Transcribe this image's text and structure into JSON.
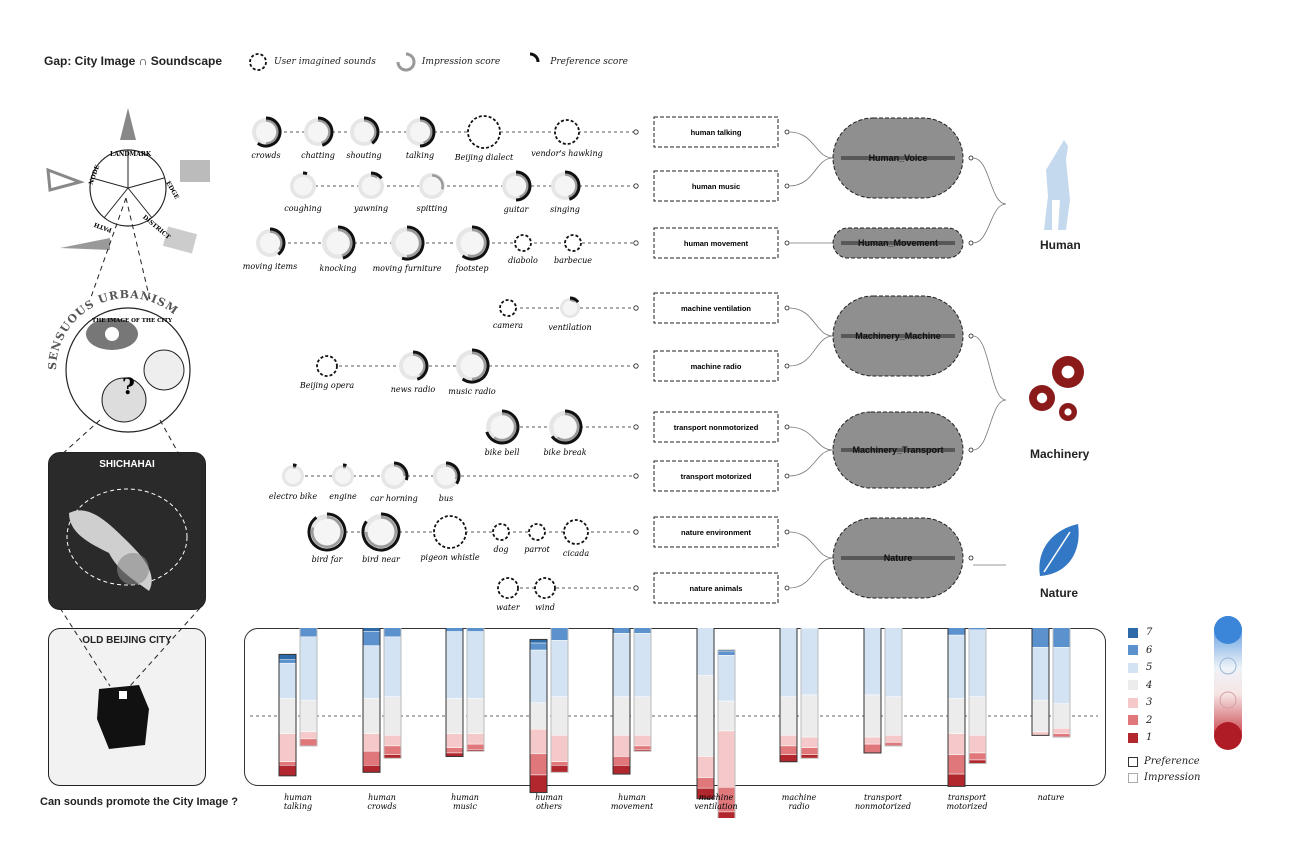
{
  "title": "Gap: City Image ∩ Soundscape",
  "question": "Can sounds promote the City Image ?",
  "legend": {
    "imagined": "User imagined sounds",
    "impression": "Impression score",
    "preference": "Preference score"
  },
  "rows": [
    {
      "sounds": [
        {
          "name": "crowds",
          "type": "score",
          "pref": 0.6,
          "imp": 0.5
        },
        {
          "name": "chatting",
          "type": "score",
          "pref": 0.45,
          "imp": 0.45
        },
        {
          "name": "shouting",
          "type": "score",
          "pref": 0.4,
          "imp": 0.4
        },
        {
          "name": "talking",
          "type": "score",
          "pref": 0.5,
          "imp": 0.45
        },
        {
          "name": "Beijing dialect",
          "type": "imagined"
        },
        {
          "name": "vendor's hawking",
          "type": "imagined"
        }
      ],
      "category": "human talking"
    },
    {
      "sounds": [
        {
          "name": "coughing",
          "type": "score",
          "pref": 0.05,
          "imp": 0
        },
        {
          "name": "yawning",
          "type": "score",
          "pref": 0.15,
          "imp": 0.1
        },
        {
          "name": "spitting",
          "type": "score",
          "pref": 0,
          "imp": 0.3
        },
        {
          "name": "guitar",
          "type": "score",
          "pref": 0.5,
          "imp": 0.45
        },
        {
          "name": "singing",
          "type": "score",
          "pref": 0.45,
          "imp": 0.45
        }
      ],
      "category": "human music"
    },
    {
      "sounds": [
        {
          "name": "moving items",
          "type": "score",
          "pref": 0.4,
          "imp": 0.35
        },
        {
          "name": "knocking",
          "type": "score",
          "pref": 0.45,
          "imp": 0.45
        },
        {
          "name": "moving furniture",
          "type": "score",
          "pref": 0.55,
          "imp": 0.5
        },
        {
          "name": "footstep",
          "type": "score",
          "pref": 0.6,
          "imp": 0.55
        },
        {
          "name": "diabolo",
          "type": "imagined"
        },
        {
          "name": "barbecue",
          "type": "imagined"
        }
      ],
      "category": "human movement"
    },
    {
      "sounds": [
        {
          "name": "camera",
          "type": "imagined"
        },
        {
          "name": "ventilation",
          "type": "score",
          "pref": 0.15,
          "imp": 0.1
        }
      ],
      "category": "machine ventilation"
    },
    {
      "sounds": [
        {
          "name": "Beijing opera",
          "type": "imagined"
        },
        {
          "name": "news radio",
          "type": "score",
          "pref": 0.45,
          "imp": 0.4
        },
        {
          "name": "music radio",
          "type": "score",
          "pref": 0.6,
          "imp": 0.5
        }
      ],
      "category": "machine radio"
    },
    {
      "sounds": [
        {
          "name": "bike bell",
          "type": "score",
          "pref": 0.7,
          "imp": 0.6
        },
        {
          "name": "bike break",
          "type": "score",
          "pref": 0.65,
          "imp": 0.6
        }
      ],
      "category": "transport nonmotorized"
    },
    {
      "sounds": [
        {
          "name": "electro bike",
          "type": "score",
          "pref": 0.05,
          "imp": 0.05
        },
        {
          "name": "engine",
          "type": "score",
          "pref": 0.05,
          "imp": 0.05
        },
        {
          "name": "car horning",
          "type": "score",
          "pref": 0.3,
          "imp": 0.25
        },
        {
          "name": "bus",
          "type": "score",
          "pref": 0.35,
          "imp": 0.3
        },
        {
          "name": "",
          "type": "none"
        }
      ],
      "category": "transport motorized"
    },
    {
      "sounds": [
        {
          "name": "bird far",
          "type": "score",
          "pref": 0.9,
          "imp": 0.8
        },
        {
          "name": "bird near",
          "type": "score",
          "pref": 0.85,
          "imp": 0.75
        },
        {
          "name": "pigeon whistle",
          "type": "imagined"
        },
        {
          "name": "dog",
          "type": "imagined"
        },
        {
          "name": "parrot",
          "type": "imagined"
        },
        {
          "name": "cicada",
          "type": "imagined"
        }
      ],
      "category": "nature environment"
    },
    {
      "sounds": [
        {
          "name": "water",
          "type": "imagined"
        },
        {
          "name": "wind",
          "type": "imagined"
        }
      ],
      "category": "nature animals"
    }
  ],
  "clusters": [
    "Human_Voice",
    "Human_Movement",
    "Machinery_Machine",
    "Machinery_Transport",
    "Nature"
  ],
  "groups": [
    "Human",
    "Machinery",
    "Nature"
  ],
  "maps": {
    "lynch": [
      "LANDMARK",
      "NODE",
      "EDGE",
      "PATH",
      "DISTRICT"
    ],
    "sensuous_ring": "SENSUOUS URBANISM",
    "image_of_city": "THE IMAGE OF THE CITY",
    "shichahai": "SHICHAHAI",
    "old_city": "OLD BEIJING CITY"
  },
  "scale": {
    "labels": [
      "7",
      "6",
      "5",
      "4",
      "3",
      "2",
      "1"
    ],
    "colors": [
      "#2f6aa8",
      "#5b92cd",
      "#d3e3f3",
      "#ececec",
      "#f5c9ca",
      "#e0777b",
      "#b2262d"
    ],
    "preference": "Preference",
    "impression": "Impression"
  },
  "chart_data": {
    "type": "bar",
    "stacked": true,
    "levels": [
      1,
      2,
      3,
      4,
      5,
      6,
      7
    ],
    "categories": [
      "human talking",
      "human crowds",
      "human music",
      "human others",
      "human movement",
      "machine ventilation",
      "machine radio",
      "transport nonmotorized",
      "transport motorized",
      "nature"
    ],
    "series": [
      {
        "name": "Preference",
        "values": [
          [
            0.06,
            0.02,
            0.16,
            0.2,
            0.2,
            0.02,
            0.03
          ],
          [
            0.04,
            0.08,
            0.1,
            0.2,
            0.3,
            0.08,
            0.05
          ],
          [
            0.02,
            0.03,
            0.08,
            0.2,
            0.38,
            0.1,
            0.03
          ],
          [
            0.1,
            0.12,
            0.14,
            0.15,
            0.3,
            0.04,
            0.02
          ],
          [
            0.05,
            0.05,
            0.12,
            0.22,
            0.36,
            0.08,
            0.03
          ],
          [
            0.06,
            0.06,
            0.12,
            0.46,
            0.28,
            0.02,
            0.01
          ],
          [
            0.04,
            0.05,
            0.06,
            0.22,
            0.42,
            0.09,
            0.06
          ],
          [
            0,
            0.05,
            0.04,
            0.24,
            0.44,
            0.15,
            0.05
          ],
          [
            0.07,
            0.11,
            0.12,
            0.2,
            0.36,
            0.3,
            0.02
          ],
          [
            0,
            0,
            0.02,
            0.18,
            0.3,
            0.27,
            0.24
          ]
        ]
      },
      {
        "name": "Impression",
        "values": [
          [
            0,
            0.04,
            0.04,
            0.18,
            0.36,
            0.24,
            0.06
          ],
          [
            0.02,
            0.05,
            0.06,
            0.22,
            0.34,
            0.2,
            0.08
          ],
          [
            0.01,
            0.03,
            0.06,
            0.2,
            0.38,
            0.18,
            0.04
          ],
          [
            0.04,
            0.02,
            0.15,
            0.22,
            0.32,
            0.2,
            0.04
          ],
          [
            0.01,
            0.02,
            0.06,
            0.22,
            0.36,
            0.24,
            0.06
          ],
          [
            0.13,
            0.14,
            0.32,
            0.17,
            0.26,
            0.02,
            0.01
          ],
          [
            0.02,
            0.04,
            0.06,
            0.24,
            0.38,
            0.22,
            0.08
          ],
          [
            0,
            0.02,
            0.04,
            0.22,
            0.42,
            0.26,
            0.09
          ],
          [
            0.02,
            0.04,
            0.1,
            0.22,
            0.38,
            0.36,
            0.01
          ],
          [
            0,
            0.02,
            0.03,
            0.14,
            0.32,
            0.32,
            0.14
          ]
        ]
      }
    ],
    "baseline_level": 4,
    "legend": "right"
  }
}
